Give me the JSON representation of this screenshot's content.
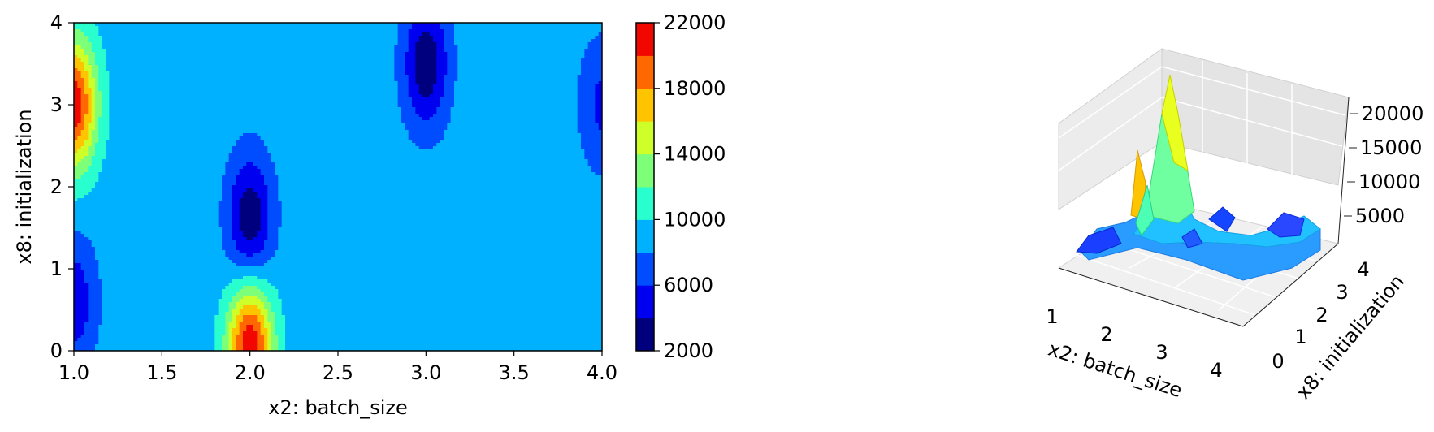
{
  "chart_data": [
    {
      "type": "heatmap",
      "subtype": "filled-contour",
      "colormap": "jet",
      "xlabel": "x2: batch_size",
      "ylabel": "x8: initialization",
      "xlim": [
        1.0,
        4.0
      ],
      "ylim": [
        0,
        4
      ],
      "xticks": [
        "1.0",
        "1.5",
        "2.0",
        "2.5",
        "3.0",
        "3.5",
        "4.0"
      ],
      "yticks": [
        "0",
        "1",
        "2",
        "3",
        "4"
      ],
      "background_value": 9000,
      "features": [
        {
          "x": 1.0,
          "y": 3.0,
          "value": 21500
        },
        {
          "x": 1.0,
          "y": 0.6,
          "value": 4500
        },
        {
          "x": 2.0,
          "y": 0.05,
          "value": 21800
        },
        {
          "x": 2.0,
          "y": 1.6,
          "value": 2500
        },
        {
          "x": 3.0,
          "y": 3.5,
          "value": 2500
        },
        {
          "x": 4.0,
          "y": 3.0,
          "value": 5500
        }
      ],
      "colorbar": {
        "levels": [
          2000,
          4000,
          6000,
          8000,
          10000,
          12000,
          14000,
          16000,
          18000,
          20000,
          22000
        ],
        "ticks": [
          "2000",
          "6000",
          "10000",
          "14000",
          "18000",
          "22000"
        ],
        "colors": [
          "#00007f",
          "#0000f1",
          "#004dff",
          "#00b1ff",
          "#29ffce",
          "#7dff7a",
          "#ceff29",
          "#ffc400",
          "#ff6800",
          "#f10700"
        ]
      }
    },
    {
      "type": "surface-3d",
      "colormap": "jet",
      "xlabel": "x2: batch_size",
      "ylabel": "x8: initialization",
      "xticks": [
        "1",
        "2",
        "3",
        "4"
      ],
      "yticks": [
        "0",
        "1",
        "2",
        "3",
        "4"
      ],
      "zticks": [
        "5000",
        "10000",
        "15000",
        "20000"
      ],
      "grid": true
    }
  ]
}
